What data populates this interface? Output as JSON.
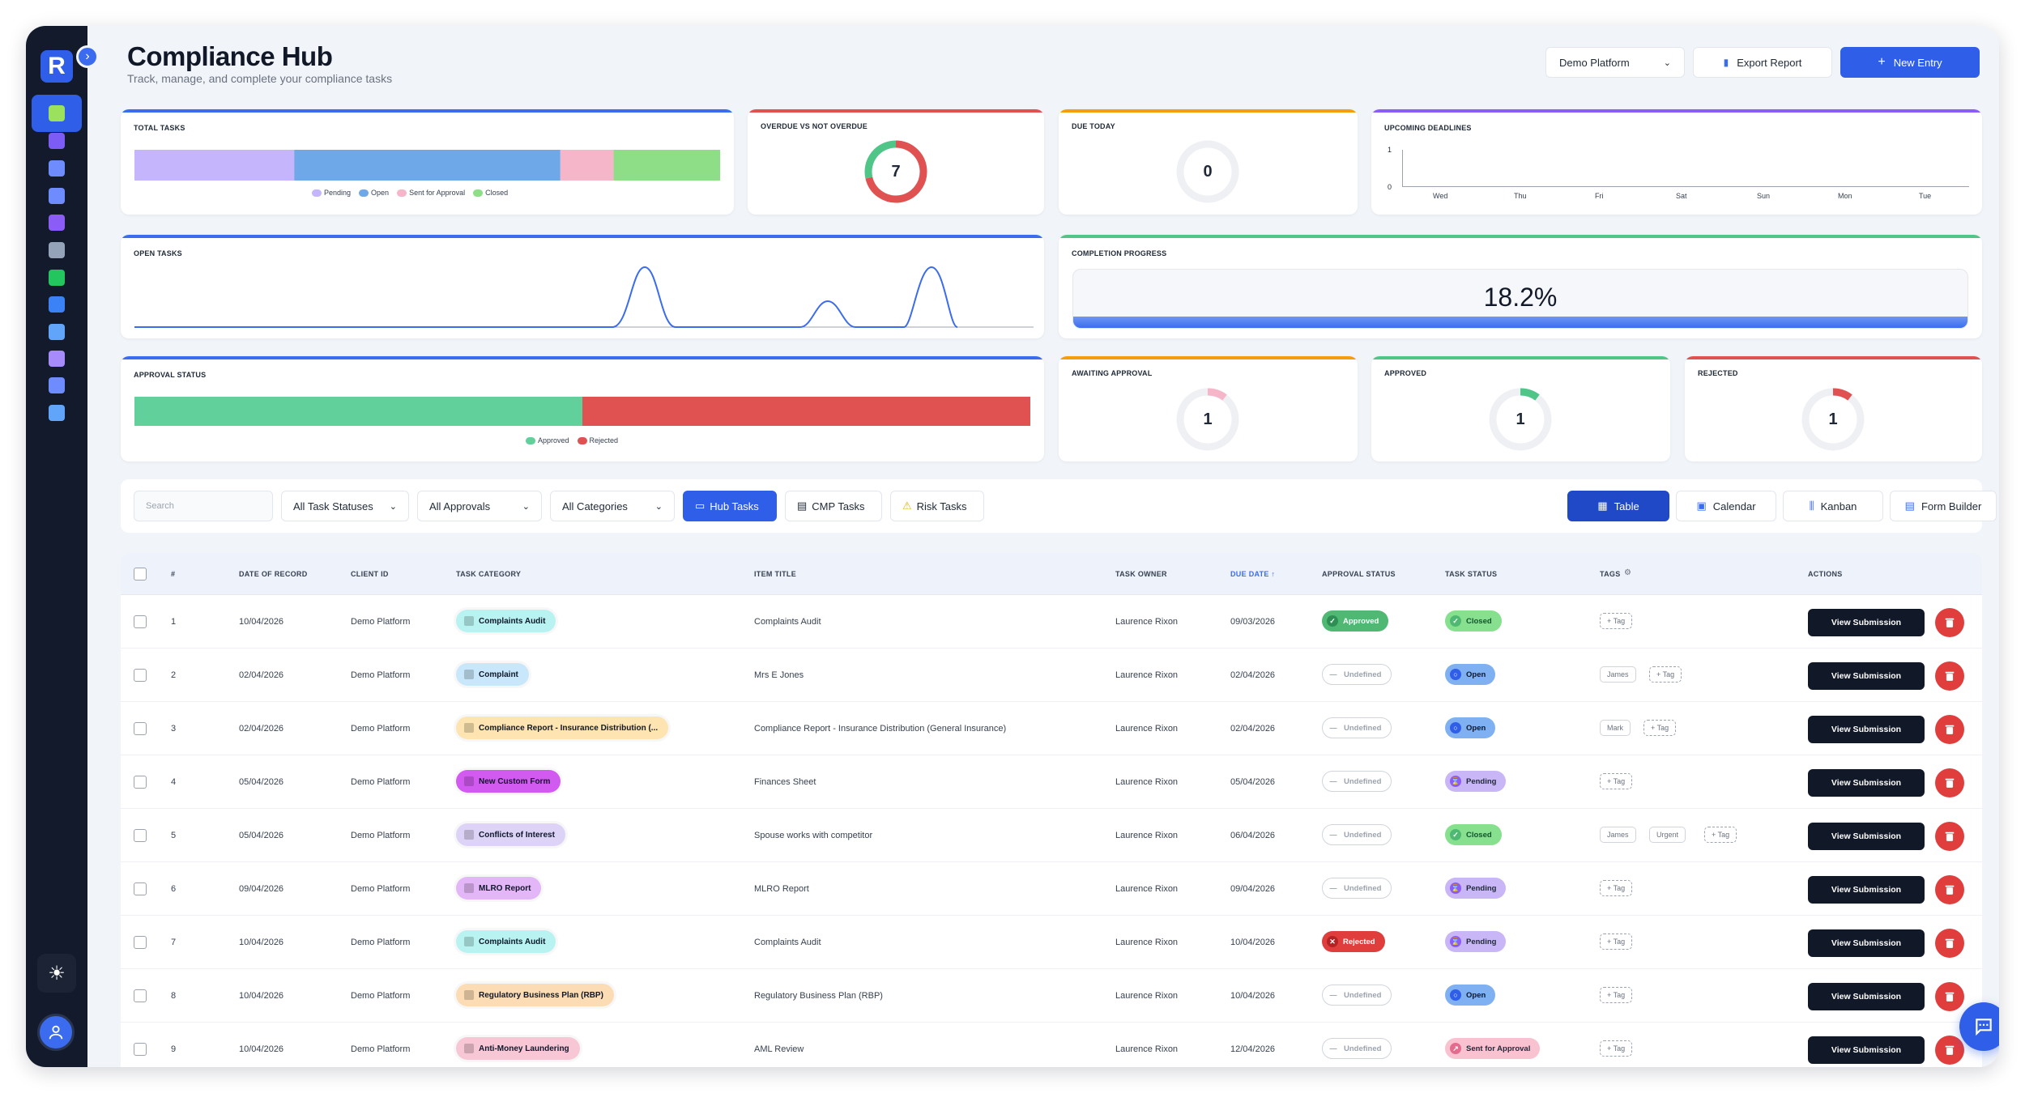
{
  "header": {
    "title": "Compliance Hub",
    "subtitle": "Track, manage, and complete your compliance tasks",
    "platform_select": "Demo Platform",
    "export_label": "Export Report",
    "new_entry_label": "New Entry"
  },
  "sidebar": {
    "logo": "R",
    "items": [
      {
        "name": "tasks",
        "color": "#2f5ee8",
        "icon_color": "#9be15d"
      },
      {
        "name": "buildings",
        "color": "#ffffff",
        "icon_color": "#7c5cf5"
      },
      {
        "name": "users",
        "color": "#ffffff",
        "icon_color": "#6f8cff"
      },
      {
        "name": "shield",
        "color": "#ffffff",
        "icon_color": "#6f8cff"
      },
      {
        "name": "clipboard",
        "color": "#ffffff",
        "icon_color": "#8b5cf6"
      },
      {
        "name": "id-card",
        "color": "#ffffff",
        "icon_color": "#94a3b8"
      },
      {
        "name": "message",
        "color": "#ffffff",
        "icon_color": "#22c55e"
      },
      {
        "name": "chart",
        "color": "#ffffff",
        "icon_color": "#3b82f6"
      },
      {
        "name": "document",
        "color": "#ffffff",
        "icon_color": "#60a5fa"
      },
      {
        "name": "list",
        "color": "#ffffff",
        "icon_color": "#a78bfa"
      },
      {
        "name": "target",
        "color": "#ffffff",
        "icon_color": "#6f8cff"
      },
      {
        "name": "monitor",
        "color": "#ffffff",
        "icon_color": "#60a5fa"
      }
    ]
  },
  "cards": {
    "total_tasks": {
      "label": "TOTAL TASKS",
      "legend": [
        "Pending",
        "Open",
        "Sent for Approval",
        "Closed"
      ]
    },
    "overdue": {
      "label": "OVERDUE VS NOT OVERDUE",
      "value": "7"
    },
    "due_today": {
      "label": "DUE TODAY",
      "value": "0"
    },
    "upcoming": {
      "label": "UPCOMING DEADLINES",
      "y_ticks": [
        "1",
        "0"
      ],
      "days": [
        "Wed",
        "Thu",
        "Fri",
        "Sat",
        "Sun",
        "Mon",
        "Tue"
      ]
    },
    "open_tasks": {
      "label": "OPEN TASKS"
    },
    "completion": {
      "label": "COMPLETION PROGRESS",
      "value": "18.2%"
    },
    "approval_status": {
      "label": "APPROVAL STATUS",
      "legend": [
        "Approved",
        "Rejected"
      ]
    },
    "awaiting": {
      "label": "AWAITING APPROVAL",
      "value": "1"
    },
    "approved": {
      "label": "APPROVED",
      "value": "1"
    },
    "rejected": {
      "label": "REJECTED",
      "value": "1"
    }
  },
  "chart_data": [
    {
      "type": "bar",
      "title": "TOTAL TASKS",
      "categories": [
        "Pending",
        "Open",
        "Sent for Approval",
        "Closed"
      ],
      "values": [
        3,
        5,
        1,
        2
      ],
      "colors": [
        "#c4b5fd",
        "#6fa8e8",
        "#f4b6c8",
        "#8ede87"
      ]
    },
    {
      "type": "pie",
      "title": "OVERDUE VS NOT OVERDUE",
      "categories": [
        "Overdue",
        "Not Overdue"
      ],
      "values": [
        5,
        2
      ],
      "colors": [
        "#e05252",
        "#4fc588"
      ]
    },
    {
      "type": "bar",
      "title": "APPROVAL STATUS",
      "categories": [
        "Approved",
        "Rejected"
      ],
      "values": [
        1,
        1
      ],
      "colors": [
        "#61d09a",
        "#e05252"
      ]
    }
  ],
  "filters": {
    "search_placeholder": "Search",
    "statuses": "All Task Statuses",
    "approvals": "All Approvals",
    "categories": "All Categories",
    "hub_tasks": "Hub Tasks",
    "cmp_tasks": "CMP Tasks",
    "risk_tasks": "Risk Tasks",
    "views": [
      "Table",
      "Calendar",
      "Kanban",
      "Form Builder"
    ]
  },
  "table": {
    "headers": [
      "#",
      "DATE OF RECORD",
      "CLIENT ID",
      "TASK CATEGORY",
      "ITEM TITLE",
      "TASK OWNER",
      "DUE DATE ↑",
      "APPROVAL STATUS",
      "TASK STATUS",
      "TAGS",
      "ACTIONS"
    ],
    "view_label": "View Submission",
    "rows": [
      {
        "n": "1",
        "date": "10/04/2026",
        "client": "Demo Platform",
        "category": "Complaints Audit",
        "cat_bg": "#b8f3f1",
        "cat_fg": "#0f172a",
        "title": "Complaints Audit",
        "owner": "Laurence Rixon",
        "due": "09/03/2026",
        "approval": "Approved",
        "status": "Closed",
        "tags": []
      },
      {
        "n": "2",
        "date": "02/04/2026",
        "client": "Demo Platform",
        "category": "Complaint",
        "cat_bg": "#c9e7fb",
        "cat_fg": "#0f172a",
        "title": "Mrs E Jones",
        "owner": "Laurence Rixon",
        "due": "02/04/2026",
        "approval": "Undefined",
        "status": "Open",
        "tags": [
          "James"
        ]
      },
      {
        "n": "3",
        "date": "02/04/2026",
        "client": "Demo Platform",
        "category": "Compliance Report - Insurance Distribution (...",
        "cat_bg": "#fde4b0",
        "cat_fg": "#0f172a",
        "title": "Compliance Report - Insurance Distribution (General Insurance)",
        "owner": "Laurence Rixon",
        "due": "02/04/2026",
        "approval": "Undefined",
        "status": "Open",
        "tags": [
          "Mark"
        ]
      },
      {
        "n": "4",
        "date": "05/04/2026",
        "client": "Demo Platform",
        "category": "New Custom Form",
        "cat_bg": "#d25af0",
        "cat_fg": "#0f172a",
        "title": "Finances Sheet",
        "owner": "Laurence Rixon",
        "due": "05/04/2026",
        "approval": "Undefined",
        "status": "Pending",
        "tags": []
      },
      {
        "n": "5",
        "date": "05/04/2026",
        "client": "Demo Platform",
        "category": "Conflicts of Interest",
        "cat_bg": "#ddd3f7",
        "cat_fg": "#0f172a",
        "title": "Spouse works with competitor",
        "owner": "Laurence Rixon",
        "due": "06/04/2026",
        "approval": "Undefined",
        "status": "Closed",
        "tags": [
          "James",
          "Urgent"
        ]
      },
      {
        "n": "6",
        "date": "09/04/2026",
        "client": "Demo Platform",
        "category": "MLRO Report",
        "cat_bg": "#e2b6f7",
        "cat_fg": "#0f172a",
        "title": "MLRO Report",
        "owner": "Laurence Rixon",
        "due": "09/04/2026",
        "approval": "Undefined",
        "status": "Pending",
        "tags": []
      },
      {
        "n": "7",
        "date": "10/04/2026",
        "client": "Demo Platform",
        "category": "Complaints Audit",
        "cat_bg": "#b8f3f1",
        "cat_fg": "#0f172a",
        "title": "Complaints Audit",
        "owner": "Laurence Rixon",
        "due": "10/04/2026",
        "approval": "Rejected",
        "status": "Pending",
        "tags": []
      },
      {
        "n": "8",
        "date": "10/04/2026",
        "client": "Demo Platform",
        "category": "Regulatory Business Plan (RBP)",
        "cat_bg": "#fcdcb4",
        "cat_fg": "#0f172a",
        "title": "Regulatory Business Plan (RBP)",
        "owner": "Laurence Rixon",
        "due": "10/04/2026",
        "approval": "Undefined",
        "status": "Open",
        "tags": []
      },
      {
        "n": "9",
        "date": "10/04/2026",
        "client": "Demo Platform",
        "category": "Anti-Money Laundering",
        "cat_bg": "#f8c7d6",
        "cat_fg": "#0f172a",
        "title": "AML Review",
        "owner": "Laurence Rixon",
        "due": "12/04/2026",
        "approval": "Undefined",
        "status": "Sent for Approval",
        "tags": []
      }
    ],
    "add_tag_label": "+ Tag"
  },
  "colors": {
    "accent": "#2f5ee8",
    "approved": "#4fb872",
    "rejected": "#e03d3d",
    "open": "#5b8def",
    "pending": "#b79cf5",
    "sent": "#f5a3b9"
  }
}
